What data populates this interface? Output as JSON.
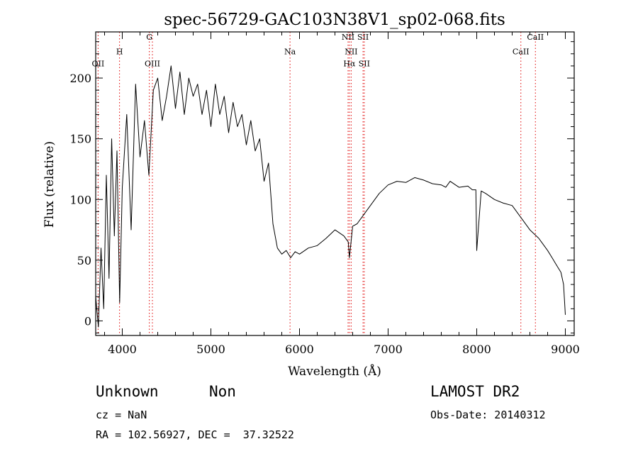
{
  "chart_data": {
    "type": "line",
    "title": "spec-56729-GAC103N38V1_sp02-068.fits",
    "xlabel": "Wavelength (Å)",
    "ylabel": "Flux (relative)",
    "xlim": [
      3700,
      9100
    ],
    "ylim": [
      -12,
      238
    ],
    "xticks": [
      4000,
      5000,
      6000,
      7000,
      8000,
      9000
    ],
    "yticks": [
      0,
      50,
      100,
      150,
      200
    ],
    "grid": false,
    "line_color": "#000000",
    "marker_color": "#e00000",
    "lines": [
      {
        "name": "OII",
        "x": 3727,
        "label_y": 212
      },
      {
        "name": "H",
        "x": 3969,
        "label_y": 222
      },
      {
        "name": "G",
        "x": 4305,
        "label_y": 234
      },
      {
        "name": "OIII",
        "x": 4340,
        "label_y": 212
      },
      {
        "name": "Na",
        "x": 5893,
        "label_y": 222
      },
      {
        "name": "NII",
        "x": 6548,
        "label_y": 234
      },
      {
        "name": "NII",
        "x": 6583,
        "label_y": 222
      },
      {
        "name": "Hα",
        "x": 6563,
        "label_y": 212
      },
      {
        "name": "SII",
        "x": 6717,
        "label_y": 234
      },
      {
        "name": "SII",
        "x": 6731,
        "label_y": 212
      },
      {
        "name": "CaII",
        "x": 8498,
        "label_y": 222
      },
      {
        "name": "CaII",
        "x": 8662,
        "label_y": 234
      }
    ],
    "series": [
      {
        "x": [
          3700,
          3730,
          3760,
          3790,
          3820,
          3850,
          3880,
          3910,
          3940,
          3970,
          4000,
          4050,
          4100,
          4150,
          4200,
          4250,
          4300,
          4350,
          4400,
          4450,
          4500,
          4550,
          4600,
          4650,
          4700,
          4750,
          4800,
          4850,
          4900,
          4950,
          5000,
          5050,
          5100,
          5150,
          5200,
          5250,
          5300,
          5350,
          5400,
          5450,
          5500,
          5550,
          5600,
          5650,
          5700,
          5750,
          5800,
          5850,
          5900,
          5950,
          6000,
          6100,
          6200,
          6300,
          6400,
          6500,
          6550,
          6563,
          6600,
          6650,
          6700,
          6800,
          6900,
          7000,
          7100,
          7200,
          7300,
          7400,
          7500,
          7600,
          7650,
          7700,
          7800,
          7900,
          7950,
          7990,
          8000,
          8050,
          8100,
          8200,
          8300,
          8400,
          8500,
          8600,
          8700,
          8800,
          8850,
          8900,
          8950,
          8980,
          9000
        ],
        "y": [
          20,
          -5,
          60,
          10,
          120,
          35,
          150,
          70,
          140,
          15,
          110,
          170,
          75,
          195,
          135,
          165,
          120,
          190,
          200,
          165,
          185,
          210,
          175,
          205,
          170,
          200,
          185,
          195,
          170,
          190,
          160,
          195,
          170,
          185,
          155,
          180,
          160,
          170,
          145,
          165,
          140,
          150,
          115,
          130,
          80,
          60,
          55,
          58,
          52,
          57,
          55,
          60,
          62,
          68,
          75,
          70,
          65,
          52,
          78,
          80,
          85,
          95,
          105,
          112,
          115,
          114,
          118,
          116,
          113,
          112,
          110,
          115,
          110,
          111,
          108,
          108,
          58,
          107,
          105,
          100,
          97,
          95,
          85,
          75,
          68,
          58,
          52,
          46,
          40,
          30,
          5
        ]
      }
    ]
  },
  "footer": {
    "object_class": "Unknown",
    "subclass": "Non",
    "survey": "LAMOST DR2",
    "cz": "cz = NaN",
    "obs_date": "Obs-Date: 20140312",
    "coords": "RA = 102.56927, DEC =  37.32522"
  }
}
